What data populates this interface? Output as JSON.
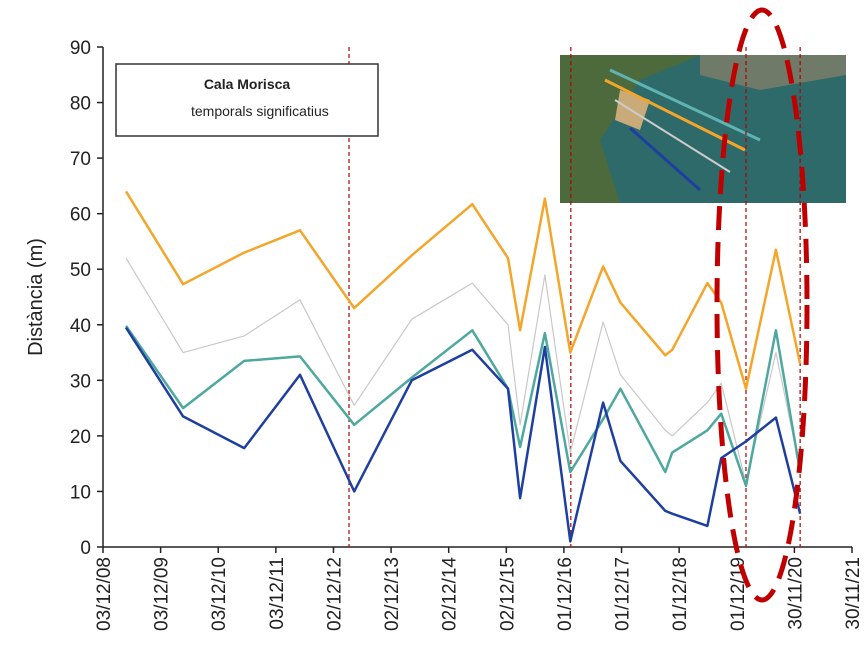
{
  "chart_data": {
    "type": "line",
    "y_label": "Distància (m)",
    "legend_title": "Cala Morisca",
    "storm_label": "temporals significatius",
    "storm_color": "#b00000",
    "storms": [
      2013.19,
      2017.04,
      2020.08,
      2021.02
    ],
    "x": [
      2009.32,
      2010.31,
      2011.37,
      2012.34,
      2013.28,
      2014.28,
      2015.33,
      2015.95,
      2016.16,
      2016.59,
      2017.03,
      2017.6,
      2017.9,
      2018.68,
      2018.8,
      2019.41,
      2019.65,
      2020.08,
      2020.6,
      2021.02
    ],
    "series": [
      {
        "color": "#f4a52a",
        "values": [
          64,
          47.3,
          53,
          57,
          43,
          52.5,
          61.7,
          52,
          39,
          62.7,
          35,
          50.5,
          44,
          34.5,
          35.5,
          47.5,
          44,
          28.5,
          53.5,
          33
        ]
      },
      {
        "color": "#c8c8c8",
        "values": [
          52,
          35,
          38,
          44.5,
          25.5,
          41,
          47.5,
          40,
          22,
          49,
          17,
          40.5,
          31,
          21,
          20,
          26,
          29.5,
          11.5,
          35,
          14
        ]
      },
      {
        "color": "#4ea8a0",
        "values": [
          39.8,
          25,
          33.5,
          34.3,
          22,
          30.5,
          39,
          28.5,
          18,
          38.5,
          13.5,
          23,
          28.5,
          13.5,
          17,
          21,
          24,
          11,
          39,
          13.5
        ]
      },
      {
        "color": "#1f3fa0",
        "values": [
          39.5,
          23.5,
          17.8,
          31,
          10,
          30,
          35.5,
          28.5,
          8.8,
          36,
          1,
          26,
          15.5,
          6.5,
          6,
          3.8,
          16,
          19,
          23.3,
          6
        ]
      }
    ],
    "xlim": [
      2008.92,
      2021.92
    ],
    "xticks": [
      {
        "value": 2008.92,
        "label": "03/12/08"
      },
      {
        "value": 2009.92,
        "label": "03/12/09"
      },
      {
        "value": 2010.92,
        "label": "03/12/10"
      },
      {
        "value": 2011.92,
        "label": "03/12/11"
      },
      {
        "value": 2012.92,
        "label": "02/12/12"
      },
      {
        "value": 2013.92,
        "label": "02/12/13"
      },
      {
        "value": 2014.92,
        "label": "02/12/14"
      },
      {
        "value": 2015.92,
        "label": "02/12/15"
      },
      {
        "value": 2016.92,
        "label": "01/12/16"
      },
      {
        "value": 2017.92,
        "label": "01/12/17"
      },
      {
        "value": 2018.92,
        "label": "01/12/18"
      },
      {
        "value": 2019.92,
        "label": "01/12/19"
      },
      {
        "value": 2020.92,
        "label": "30/11/20"
      },
      {
        "value": 2021.92,
        "label": "30/11/21"
      }
    ],
    "ylim": [
      0,
      90
    ],
    "yticks": [
      0,
      10,
      20,
      30,
      40,
      50,
      60,
      70,
      80,
      90
    ]
  }
}
